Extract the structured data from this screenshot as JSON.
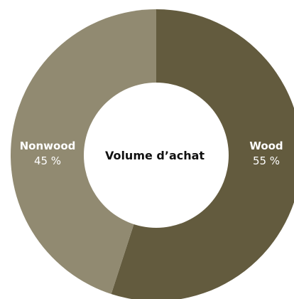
{
  "chart_data": {
    "type": "pie",
    "donut": true,
    "center_label": "Volume d’achat",
    "slices": [
      {
        "label": "Wood",
        "value": 55,
        "display": "55 %",
        "color": "#635b3e"
      },
      {
        "label": "Nonwood",
        "value": 45,
        "display": "45 %",
        "color": "#918a71"
      }
    ]
  }
}
